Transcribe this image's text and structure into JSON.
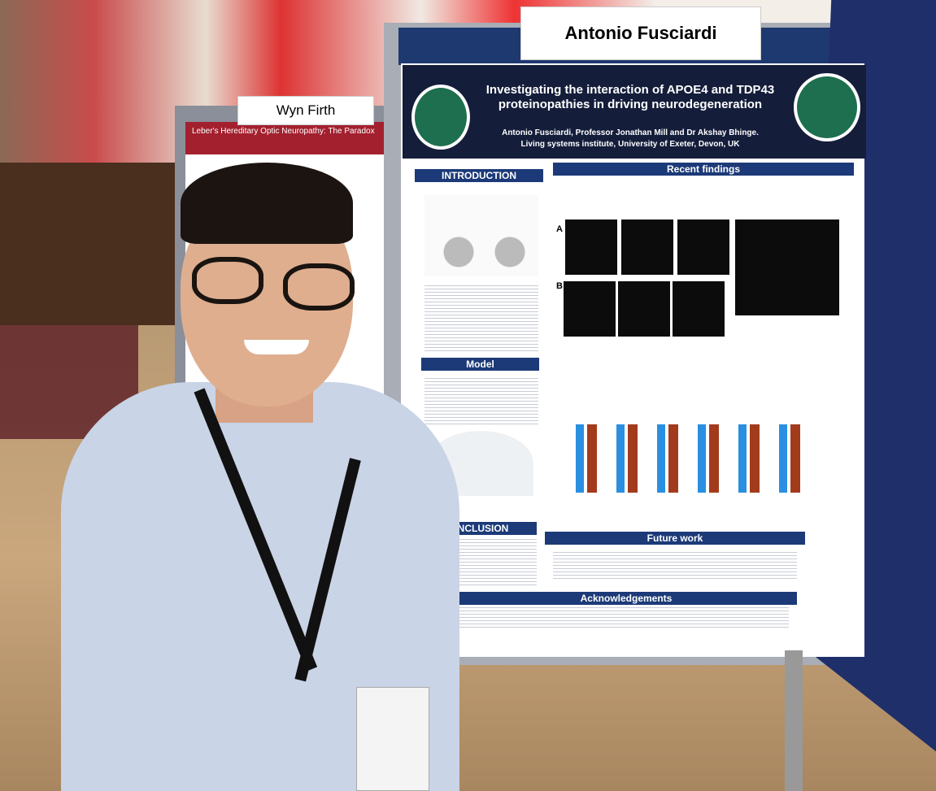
{
  "signs": {
    "main": "Antonio Fusciardi",
    "left": "Wyn Firth"
  },
  "left_poster": {
    "title": "Leber's Hereditary Optic Neuropathy: The Paradox"
  },
  "poster": {
    "title": "Investigating the interaction of APOE4 and TDP43 proteinopathies in driving neurodegeneration",
    "authors": "Antonio Fusciardi, Professor Jonathan Mill and Dr Akshay Bhinge.",
    "affiliation": "Living systems institute, University of Exeter, Devon, UK",
    "sections": [
      "INTRODUCTION",
      "Recent findings",
      "Model",
      "CONCLUSION",
      "Future work",
      "Acknowledgements"
    ],
    "panels": [
      "A",
      "B"
    ]
  }
}
